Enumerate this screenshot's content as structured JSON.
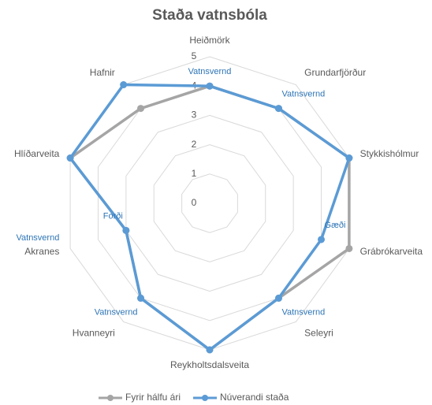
{
  "chart_data": {
    "type": "radar",
    "title": "Staða vatnsbóla",
    "categories": [
      "Heiðmörk",
      "Grundarfjörður",
      "Stykkishólmur",
      "Grábrókarveita",
      "Seleyri",
      "Reykholtsdalsveita",
      "Hvanneyri",
      "Akranes",
      "Hlíðarveita",
      "Hafnir"
    ],
    "series": [
      {
        "name": "Fyrir hálfu ári",
        "color": "#a5a5a5",
        "values": [
          4,
          4,
          5,
          5,
          4,
          5,
          4,
          3,
          5,
          4
        ]
      },
      {
        "name": "Núverandi staða",
        "color": "#5b9bd5",
        "values": [
          4,
          4,
          5,
          4,
          4,
          5,
          4,
          3,
          5,
          5
        ]
      }
    ],
    "annotations": [
      {
        "category": "Heiðmörk",
        "text": "Vatnsvernd"
      },
      {
        "category": "Grundarfjörður",
        "text": "Vatnsvernd"
      },
      {
        "category": "Grábrókarveita",
        "text": "Gæði"
      },
      {
        "category": "Seleyri",
        "text": "Vatnsvernd"
      },
      {
        "category": "Hvanneyri",
        "text": "Vatnsvernd"
      },
      {
        "category": "Akranes",
        "text": "Forði"
      },
      {
        "category": "Akranes",
        "text": "Vatnsvernd"
      }
    ],
    "rlim": [
      0,
      5
    ],
    "rticks": [
      0,
      1,
      2,
      3,
      4,
      5
    ],
    "grid": true,
    "legend": "bottom"
  }
}
